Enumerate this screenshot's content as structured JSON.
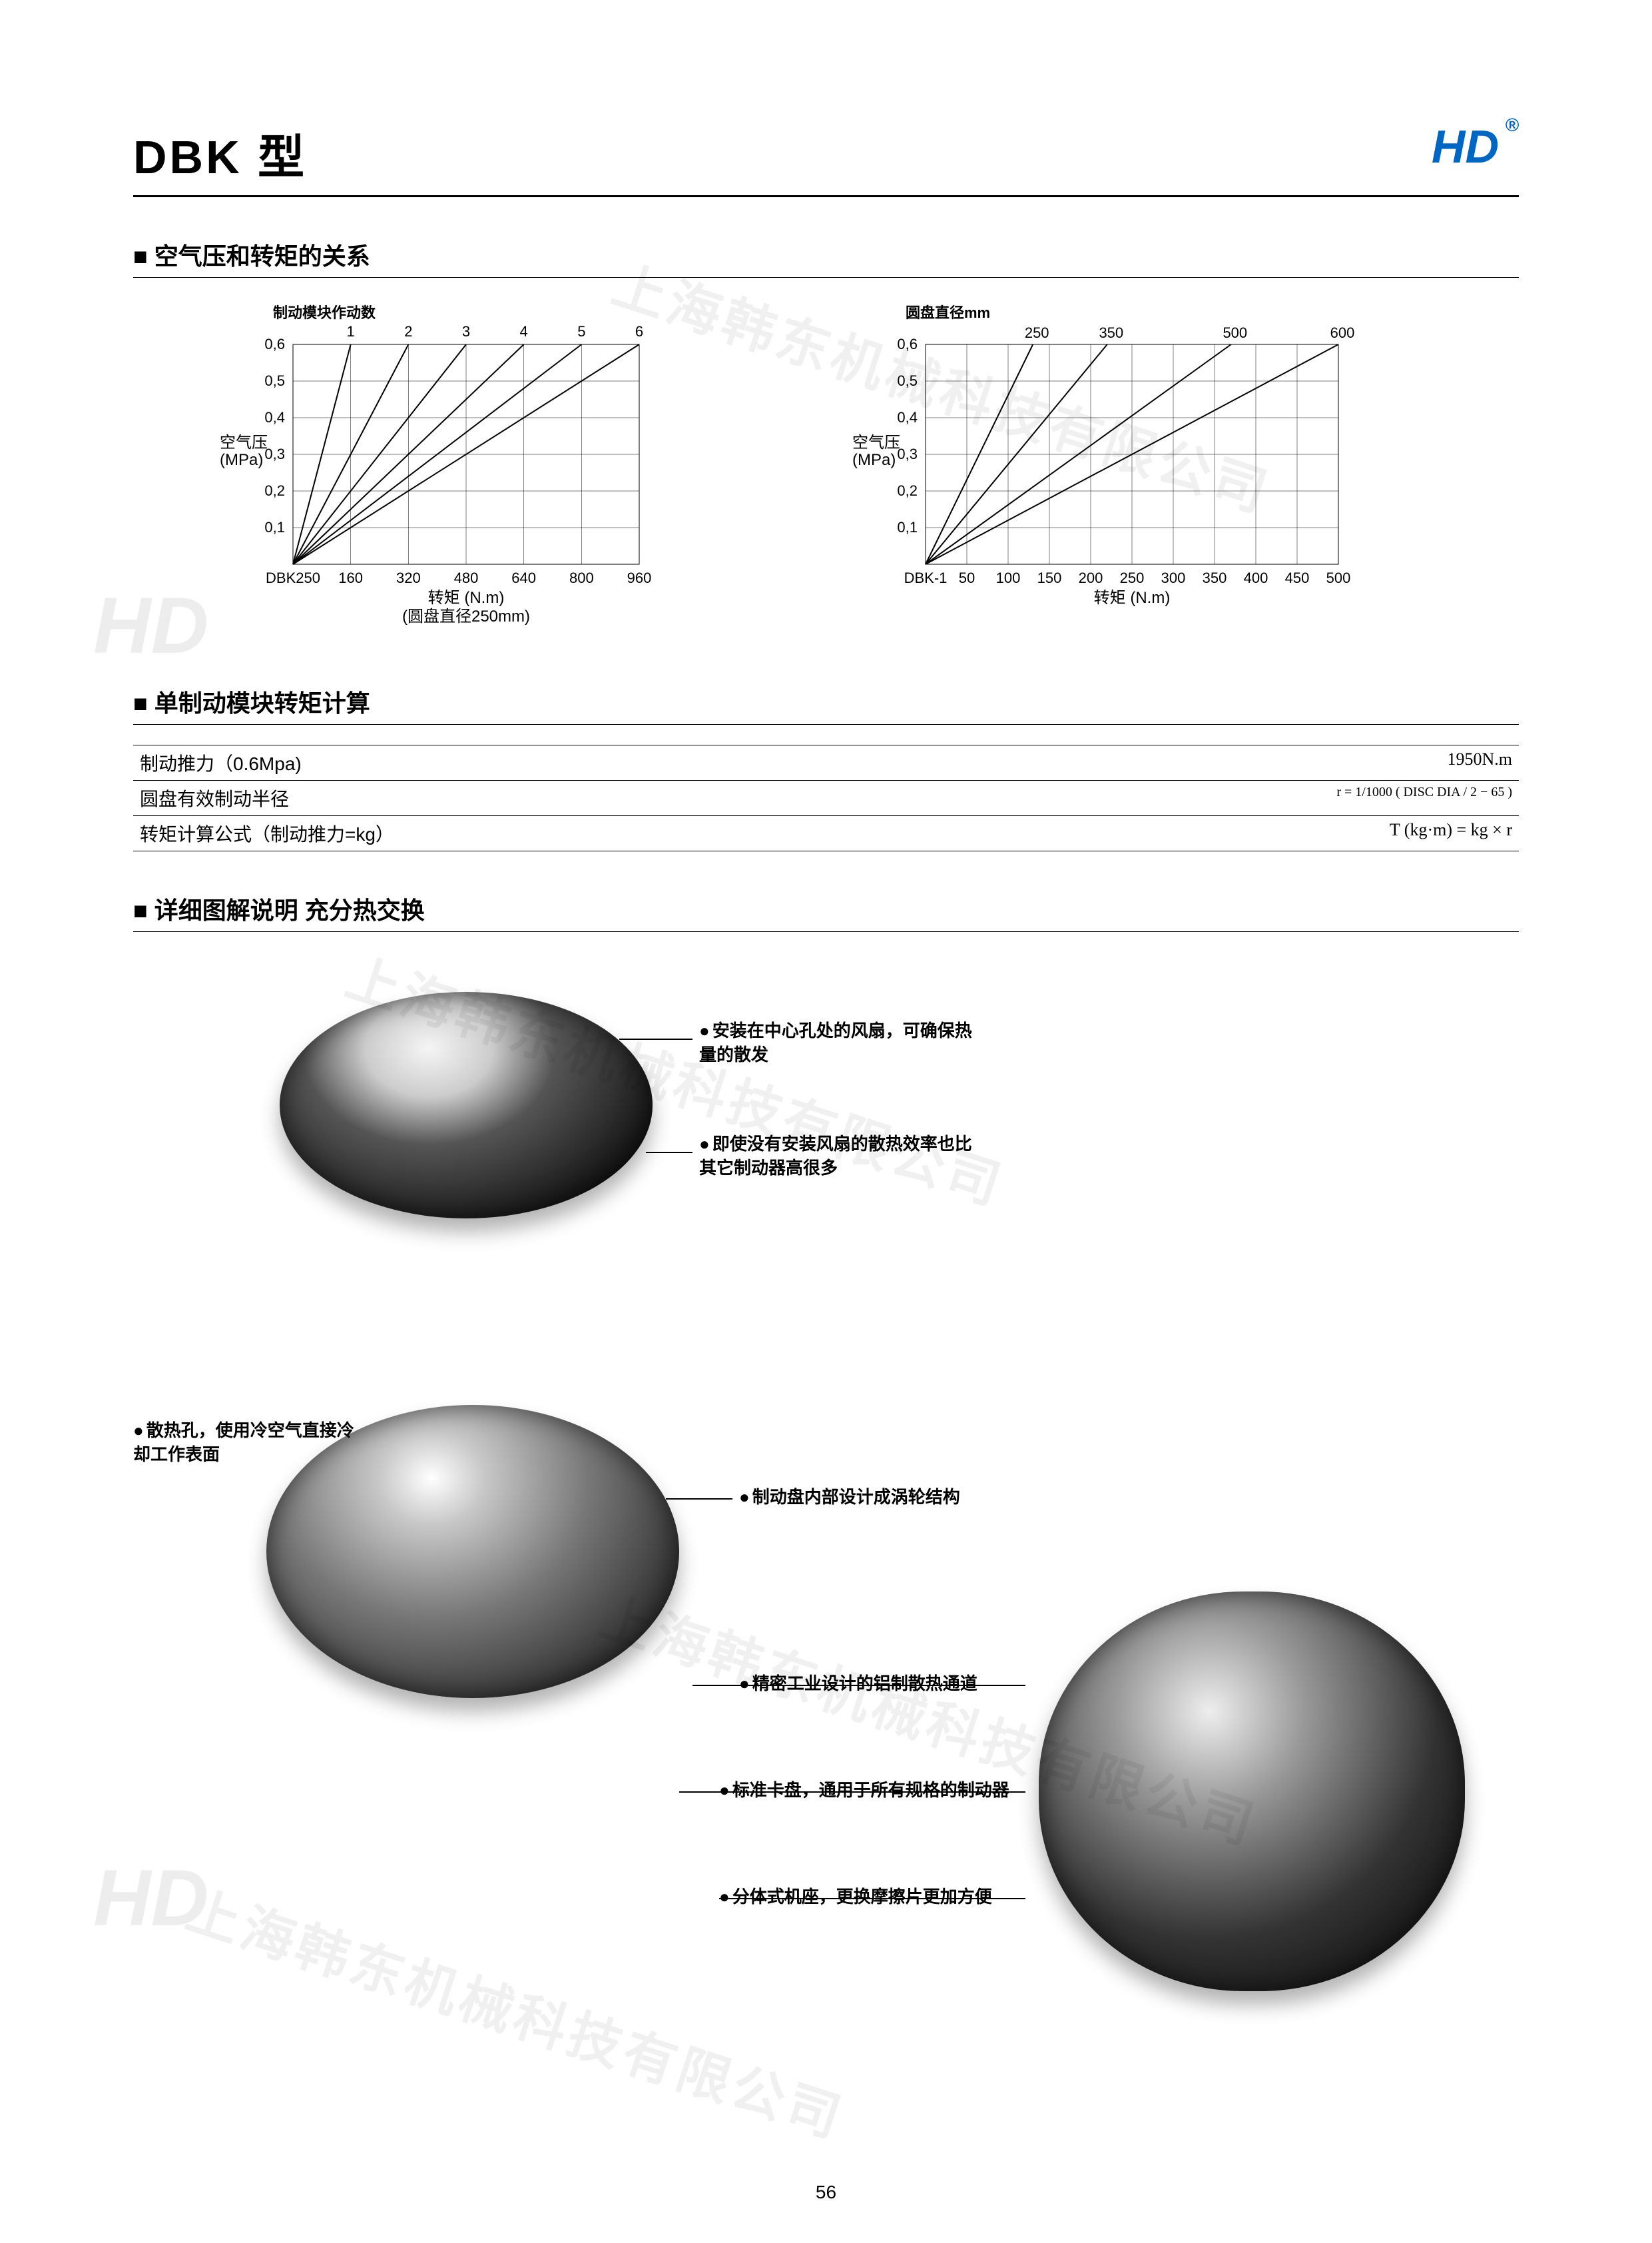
{
  "header": {
    "title": "DBK 型",
    "logo_text": "HD",
    "logo_reg": "®",
    "logo_color": "#0066c4"
  },
  "section1": {
    "title": "空气压和转矩的关系",
    "chart_left": {
      "type": "line",
      "series_label": "制动模块作动数",
      "series_names": [
        "1",
        "2",
        "3",
        "4",
        "5",
        "6"
      ],
      "y_axis_label": "空气压\n(MPa)",
      "y_ticks": [
        "0,1",
        "0,2",
        "0,3",
        "0,4",
        "0,5",
        "0,6"
      ],
      "ylim": [
        0,
        0.6
      ],
      "x_axis_label": "转矩 (N.m)",
      "x_subtitle": "(圆盘直径250mm)",
      "x_ticks": [
        "DBK250",
        "160",
        "320",
        "480",
        "640",
        "800",
        "960"
      ],
      "xlim": [
        0,
        960
      ],
      "line_endpoints_x": [
        160,
        320,
        480,
        640,
        800,
        960
      ],
      "line_color": "#000000",
      "grid_color": "#000000",
      "background_color": "#ffffff",
      "axis_fontsize": 22,
      "label_fontsize": 24
    },
    "chart_right": {
      "type": "line",
      "series_label": "圆盘直径mm",
      "series_names": [
        "250",
        "350",
        "500",
        "600"
      ],
      "y_axis_label": "空气压\n(MPa)",
      "y_ticks": [
        "0,1",
        "0,2",
        "0,3",
        "0,4",
        "0,5",
        "0,6"
      ],
      "ylim": [
        0,
        0.6
      ],
      "x_axis_label": "转矩 (N.m)",
      "x_ticks": [
        "DBK-1",
        "50",
        "100",
        "150",
        "200",
        "250",
        "300",
        "350",
        "400",
        "450",
        "500"
      ],
      "xlim": [
        0,
        500
      ],
      "line_endpoints_x": [
        130,
        220,
        370,
        500
      ],
      "line_color": "#000000",
      "grid_color": "#000000",
      "background_color": "#ffffff",
      "axis_fontsize": 22,
      "label_fontsize": 24
    }
  },
  "section2": {
    "title": "单制动模块转矩计算",
    "rows": [
      {
        "label": "制动推力（0.6Mpa)",
        "value": "1950N.m"
      },
      {
        "label": "圆盘有效制动半径",
        "value": "r = 1/1000 ( DISC DIA / 2 − 65 )"
      },
      {
        "label": "转矩计算公式（制动推力=kg）",
        "value": "T (kg·m) = kg × r"
      }
    ]
  },
  "section3": {
    "title": "详细图解说明  充分热交换",
    "callouts": {
      "c1": "安装在中心孔处的风扇，可确保热量的散发",
      "c2": "即使没有安装风扇的散热效率也比其它制动器高很多",
      "c3": "散热孔，使用冷空气直接冷却工作表面",
      "c4": "制动盘内部设计成涡轮结构",
      "c5": "精密工业设计的铝制散热通道",
      "c6": "标准卡盘，通用于所有规格的制动器",
      "c7": "分体式机座，更换摩擦片更加方便"
    }
  },
  "watermark_text": "上海韩东机械科技有限公司",
  "watermark_logo": "HD",
  "page_number": "56"
}
